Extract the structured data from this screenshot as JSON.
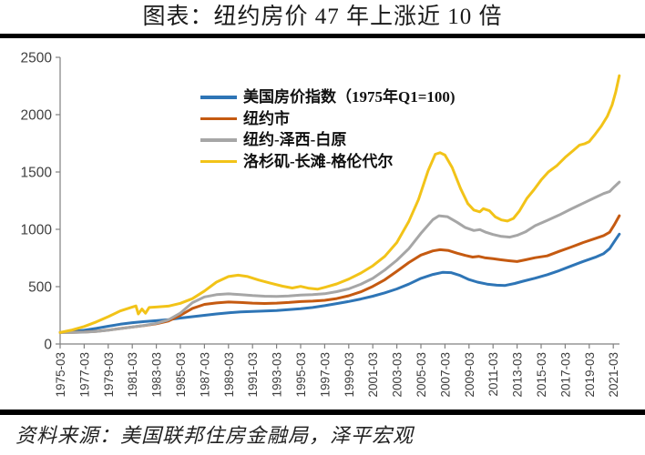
{
  "title": "图表：纽约房价 47 年上涨近 10 倍",
  "source": "资料来源：美国联邦住房金融局，泽平宏观",
  "styles": {
    "background": "#ffffff",
    "divider": "#000000",
    "axis_line": "#808080",
    "tick_label_color": "#3f3f3f",
    "title_color": "#1a1a1a"
  },
  "chart_data": {
    "type": "line",
    "title": "图表：纽约房价 47 年上涨近 10 倍",
    "xlabel": "",
    "ylabel": "",
    "grid": false,
    "legend_position": "top-center",
    "y_axis": {
      "min": 0,
      "max": 2500,
      "ticks": [
        0,
        500,
        1000,
        1500,
        2000,
        2500
      ]
    },
    "x_axis": {
      "ticks": [
        "1975-03",
        "1977-03",
        "1979-03",
        "1981-03",
        "1983-03",
        "1985-03",
        "1987-03",
        "1989-03",
        "1991-03",
        "1993-03",
        "1995-03",
        "1997-03",
        "1999-03",
        "2001-03",
        "2003-03",
        "2005-03",
        "2007-03",
        "2009-03",
        "2011-03",
        "2013-03",
        "2015-03",
        "2017-03",
        "2019-03",
        "2021-03"
      ],
      "range_years": [
        1975,
        2021.5
      ]
    },
    "series": [
      {
        "name": "美国房价指数（1975年Q1=100)",
        "color": "#2E75B6",
        "points": [
          [
            1975,
            100
          ],
          [
            1976,
            109
          ],
          [
            1977,
            120
          ],
          [
            1978,
            136
          ],
          [
            1979,
            155
          ],
          [
            1980,
            172
          ],
          [
            1981,
            186
          ],
          [
            1982,
            195
          ],
          [
            1983,
            203
          ],
          [
            1984,
            213
          ],
          [
            1985,
            226
          ],
          [
            1986,
            238
          ],
          [
            1987,
            250
          ],
          [
            1988,
            262
          ],
          [
            1989,
            272
          ],
          [
            1990,
            279
          ],
          [
            1991,
            283
          ],
          [
            1992,
            287
          ],
          [
            1993,
            292
          ],
          [
            1994,
            299
          ],
          [
            1995,
            307
          ],
          [
            1996,
            318
          ],
          [
            1997,
            334
          ],
          [
            1998,
            352
          ],
          [
            1999,
            371
          ],
          [
            2000,
            392
          ],
          [
            2001,
            417
          ],
          [
            2002,
            446
          ],
          [
            2003,
            480
          ],
          [
            2004,
            522
          ],
          [
            2005,
            572
          ],
          [
            2006,
            606
          ],
          [
            2006.8,
            625
          ],
          [
            2007.5,
            622
          ],
          [
            2008.2,
            600
          ],
          [
            2009,
            562
          ],
          [
            2009.7,
            540
          ],
          [
            2010.5,
            522
          ],
          [
            2011.3,
            513
          ],
          [
            2012,
            510
          ],
          [
            2012.8,
            528
          ],
          [
            2013.5,
            548
          ],
          [
            2014.5,
            574
          ],
          [
            2015.5,
            604
          ],
          [
            2016.5,
            640
          ],
          [
            2017.5,
            680
          ],
          [
            2018.5,
            720
          ],
          [
            2019.5,
            756
          ],
          [
            2020.2,
            788
          ],
          [
            2020.7,
            832
          ],
          [
            2021.1,
            895
          ],
          [
            2021.5,
            958
          ]
        ]
      },
      {
        "name": "纽约市",
        "color": "#C55A11",
        "points": [
          [
            1975,
            100
          ],
          [
            1976,
            101
          ],
          [
            1977,
            104
          ],
          [
            1978,
            110
          ],
          [
            1979,
            121
          ],
          [
            1980,
            135
          ],
          [
            1981,
            148
          ],
          [
            1982,
            160
          ],
          [
            1983,
            176
          ],
          [
            1984,
            200
          ],
          [
            1985,
            250
          ],
          [
            1986,
            310
          ],
          [
            1987,
            345
          ],
          [
            1988,
            358
          ],
          [
            1989,
            366
          ],
          [
            1990,
            362
          ],
          [
            1991,
            356
          ],
          [
            1992,
            353
          ],
          [
            1993,
            356
          ],
          [
            1994,
            362
          ],
          [
            1995,
            370
          ],
          [
            1996,
            374
          ],
          [
            1997,
            381
          ],
          [
            1998,
            396
          ],
          [
            1999,
            421
          ],
          [
            2000,
            455
          ],
          [
            2001,
            502
          ],
          [
            2002,
            560
          ],
          [
            2003,
            634
          ],
          [
            2004,
            710
          ],
          [
            2005,
            775
          ],
          [
            2006,
            812
          ],
          [
            2006.6,
            822
          ],
          [
            2007.3,
            815
          ],
          [
            2008,
            792
          ],
          [
            2008.7,
            772
          ],
          [
            2009.3,
            758
          ],
          [
            2009.8,
            764
          ],
          [
            2010.3,
            752
          ],
          [
            2011,
            744
          ],
          [
            2011.6,
            735
          ],
          [
            2012.3,
            726
          ],
          [
            2013,
            719
          ],
          [
            2013.7,
            734
          ],
          [
            2014.5,
            752
          ],
          [
            2015.5,
            768
          ],
          [
            2016.5,
            808
          ],
          [
            2017.5,
            845
          ],
          [
            2018.5,
            885
          ],
          [
            2019.5,
            920
          ],
          [
            2020.2,
            945
          ],
          [
            2020.7,
            975
          ],
          [
            2021.1,
            1042
          ],
          [
            2021.5,
            1118
          ]
        ]
      },
      {
        "name": "纽约-泽西-白原",
        "color": "#A6A6A6",
        "points": [
          [
            1975,
            100
          ],
          [
            1976,
            100
          ],
          [
            1977,
            103
          ],
          [
            1978,
            109
          ],
          [
            1979,
            120
          ],
          [
            1980,
            134
          ],
          [
            1981,
            148
          ],
          [
            1982,
            162
          ],
          [
            1983,
            180
          ],
          [
            1984,
            210
          ],
          [
            1985,
            270
          ],
          [
            1986,
            360
          ],
          [
            1987,
            410
          ],
          [
            1988,
            430
          ],
          [
            1989,
            437
          ],
          [
            1990,
            431
          ],
          [
            1991,
            422
          ],
          [
            1992,
            417
          ],
          [
            1993,
            415
          ],
          [
            1994,
            418
          ],
          [
            1995,
            426
          ],
          [
            1996,
            431
          ],
          [
            1997,
            438
          ],
          [
            1998,
            456
          ],
          [
            1999,
            481
          ],
          [
            2000,
            521
          ],
          [
            2001,
            572
          ],
          [
            2002,
            645
          ],
          [
            2003,
            730
          ],
          [
            2004,
            832
          ],
          [
            2005,
            965
          ],
          [
            2006,
            1085
          ],
          [
            2006.5,
            1118
          ],
          [
            2007.2,
            1110
          ],
          [
            2008,
            1062
          ],
          [
            2008.7,
            1015
          ],
          [
            2009.4,
            990
          ],
          [
            2009.9,
            998
          ],
          [
            2010.4,
            975
          ],
          [
            2011,
            955
          ],
          [
            2011.7,
            938
          ],
          [
            2012.4,
            932
          ],
          [
            2013,
            948
          ],
          [
            2013.7,
            978
          ],
          [
            2014.5,
            1032
          ],
          [
            2015.5,
            1078
          ],
          [
            2016.5,
            1125
          ],
          [
            2017.5,
            1178
          ],
          [
            2018.5,
            1228
          ],
          [
            2019.5,
            1278
          ],
          [
            2020.2,
            1312
          ],
          [
            2020.7,
            1330
          ],
          [
            2021.1,
            1372
          ],
          [
            2021.5,
            1412
          ]
        ]
      },
      {
        "name": "洛杉矶-长滩-格伦代尔",
        "color": "#F2C318",
        "points": [
          [
            1975,
            100
          ],
          [
            1976,
            122
          ],
          [
            1977,
            152
          ],
          [
            1978,
            192
          ],
          [
            1979,
            238
          ],
          [
            1980,
            288
          ],
          [
            1981,
            322
          ],
          [
            1981.3,
            332
          ],
          [
            1981.5,
            262
          ],
          [
            1981.8,
            305
          ],
          [
            1982.1,
            268
          ],
          [
            1982.4,
            318
          ],
          [
            1983,
            322
          ],
          [
            1984,
            330
          ],
          [
            1985,
            355
          ],
          [
            1986,
            395
          ],
          [
            1987,
            462
          ],
          [
            1988,
            540
          ],
          [
            1989,
            588
          ],
          [
            1989.8,
            600
          ],
          [
            1990.6,
            588
          ],
          [
            1991.5,
            558
          ],
          [
            1992.5,
            530
          ],
          [
            1993.5,
            504
          ],
          [
            1994.3,
            488
          ],
          [
            1995,
            502
          ],
          [
            1995.7,
            486
          ],
          [
            1996.4,
            478
          ],
          [
            1997.1,
            497
          ],
          [
            1998,
            524
          ],
          [
            1999,
            566
          ],
          [
            2000,
            618
          ],
          [
            2001,
            682
          ],
          [
            2002,
            764
          ],
          [
            2003,
            885
          ],
          [
            2004,
            1070
          ],
          [
            2004.8,
            1260
          ],
          [
            2005.6,
            1510
          ],
          [
            2006.2,
            1655
          ],
          [
            2006.6,
            1668
          ],
          [
            2007,
            1648
          ],
          [
            2007.6,
            1540
          ],
          [
            2008.3,
            1355
          ],
          [
            2008.9,
            1225
          ],
          [
            2009.4,
            1168
          ],
          [
            2009.9,
            1152
          ],
          [
            2010.2,
            1180
          ],
          [
            2010.7,
            1162
          ],
          [
            2011.2,
            1108
          ],
          [
            2011.7,
            1082
          ],
          [
            2012.2,
            1072
          ],
          [
            2012.7,
            1095
          ],
          [
            2013.2,
            1160
          ],
          [
            2013.8,
            1268
          ],
          [
            2014.4,
            1345
          ],
          [
            2015,
            1430
          ],
          [
            2015.6,
            1500
          ],
          [
            2016.3,
            1555
          ],
          [
            2017,
            1628
          ],
          [
            2017.7,
            1690
          ],
          [
            2018.2,
            1735
          ],
          [
            2018.6,
            1745
          ],
          [
            2019,
            1765
          ],
          [
            2019.5,
            1830
          ],
          [
            2020,
            1900
          ],
          [
            2020.5,
            1985
          ],
          [
            2020.9,
            2085
          ],
          [
            2021.2,
            2195
          ],
          [
            2021.5,
            2340
          ]
        ]
      }
    ]
  }
}
